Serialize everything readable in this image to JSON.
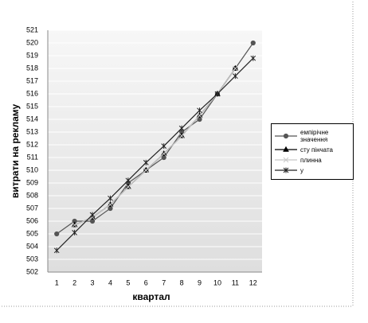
{
  "chart_data": {
    "type": "line",
    "x_label": "квартал",
    "y_label": "витрати на рекламу",
    "categories": [
      "1",
      "2",
      "3",
      "4",
      "5",
      "6",
      "7",
      "8",
      "9",
      "10",
      "11",
      "12"
    ],
    "ylim": [
      502,
      521
    ],
    "yticks": [
      502,
      503,
      504,
      505,
      506,
      507,
      508,
      509,
      510,
      511,
      512,
      513,
      514,
      515,
      516,
      517,
      518,
      519,
      520,
      521
    ],
    "grid": true,
    "legend": "right",
    "series": [
      {
        "name": "емпірічне значення",
        "color": "#555555",
        "marker": "circle",
        "values": [
          505,
          506,
          506,
          507,
          509,
          510,
          511,
          513,
          514,
          516,
          518,
          520
        ]
      },
      {
        "name": "сту пінчата",
        "color": "#000000",
        "marker": "triangle",
        "values": [
          null,
          505.7,
          506.3,
          507.3,
          508.7,
          510,
          511.3,
          512.7,
          514.3,
          516,
          518,
          null
        ]
      },
      {
        "name": "плинна",
        "color": "#c8c8c8",
        "marker": "x",
        "values": [
          null,
          505.7,
          506.3,
          507.3,
          508.7,
          510,
          511.3,
          512.7,
          514.3,
          516,
          518,
          null
        ]
      },
      {
        "name": "у",
        "color": "#222222",
        "marker": "star",
        "values": [
          503.7,
          505.1,
          506.5,
          507.8,
          509.2,
          510.6,
          511.9,
          513.3,
          514.7,
          516,
          517.4,
          518.8
        ]
      }
    ]
  }
}
